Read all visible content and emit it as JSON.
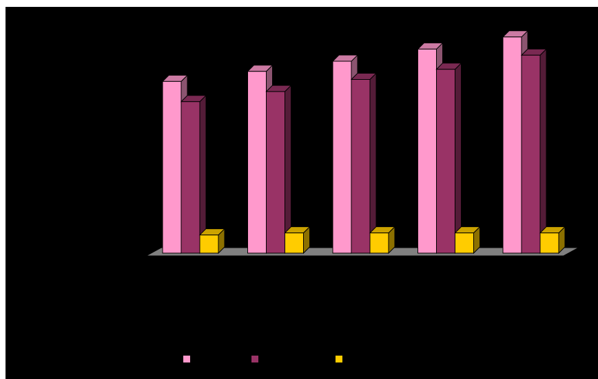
{
  "chart_data": {
    "type": "bar",
    "title": "",
    "xlabel": "",
    "ylabel": "",
    "categories": [
      "",
      "",
      "",
      "",
      ""
    ],
    "series": [
      {
        "values": [
          85,
          90,
          95,
          101,
          107
        ]
      },
      {
        "values": [
          75,
          80,
          86,
          91,
          98
        ]
      },
      {
        "values": [
          9,
          10,
          10,
          10,
          10
        ]
      }
    ],
    "ylim": [
      0,
      110
    ],
    "grid": false,
    "legend": "bottom",
    "colors": [
      "#ff99cc",
      "#993366",
      "#ffcc00"
    ],
    "background": "#000000",
    "floor_color": "#808080"
  }
}
